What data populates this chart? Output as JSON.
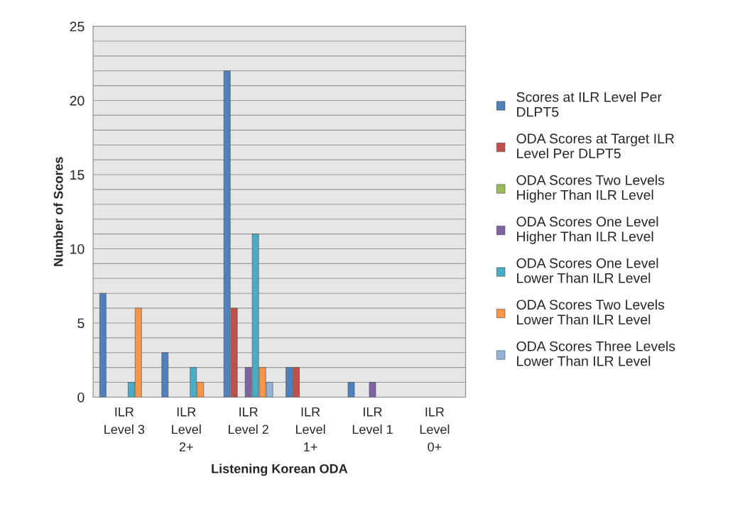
{
  "chart_data": {
    "type": "bar",
    "xlabel": "Listening Korean ODA",
    "ylabel": "Number of Scores",
    "categories": [
      "ILR Level 3",
      "ILR Level 2+",
      "ILR Level 2",
      "ILR Level 1+",
      "ILR Level 1",
      "ILR Level 0+"
    ],
    "series": [
      {
        "name": "Scores at ILR Level Per DLPT5",
        "color": "#4f81bd",
        "values": [
          7,
          3,
          22,
          2,
          1,
          0
        ]
      },
      {
        "name": "ODA Scores at Target ILR Level Per DLPT5",
        "color": "#c0504d",
        "values": [
          0,
          0,
          6,
          2,
          0,
          0
        ]
      },
      {
        "name": "ODA Scores Two Levels Higher Than ILR Level",
        "color": "#9bbb59",
        "values": [
          0,
          0,
          0,
          0,
          0,
          0
        ]
      },
      {
        "name": "ODA Scores One Level Higher Than ILR Level",
        "color": "#8064a2",
        "values": [
          0,
          0,
          2,
          0,
          1,
          0
        ]
      },
      {
        "name": "ODA Scores One Level Lower Than ILR Level",
        "color": "#4bacc6",
        "values": [
          1,
          2,
          11,
          0,
          0,
          0
        ]
      },
      {
        "name": "ODA Scores Two Levels Lower Than ILR Level",
        "color": "#f79646",
        "values": [
          6,
          1,
          2,
          0,
          0,
          0
        ]
      },
      {
        "name": "ODA Scores Three Levels Lower Than ILR Level",
        "color": "#95b3d7",
        "values": [
          0,
          0,
          1,
          0,
          0,
          0
        ]
      }
    ],
    "ylim": [
      0,
      25
    ],
    "yticks": [
      0,
      {
        "value": 1,
        "label": null
      },
      {
        "value": 2,
        "label": null
      },
      {
        "value": 3,
        "label": null
      },
      {
        "value": 4,
        "label": null
      },
      5,
      {
        "value": 6,
        "label": null
      },
      {
        "value": 7,
        "label": null
      },
      {
        "value": 8,
        "label": null
      },
      {
        "value": 9,
        "label": null
      },
      10,
      {
        "value": 11,
        "label": null
      },
      {
        "value": 12,
        "label": null
      },
      {
        "value": 13,
        "label": null
      },
      {
        "value": 14,
        "label": null
      },
      15,
      {
        "value": 16,
        "label": null
      },
      {
        "value": 17,
        "label": null
      },
      {
        "value": 18,
        "label": null
      },
      {
        "value": 19,
        "label": null
      },
      20,
      {
        "value": 21,
        "label": null
      },
      {
        "value": 22,
        "label": null
      },
      {
        "value": 23,
        "label": null
      },
      {
        "value": 24,
        "label": null
      },
      25
    ],
    "grid": "y",
    "legend": "right"
  }
}
